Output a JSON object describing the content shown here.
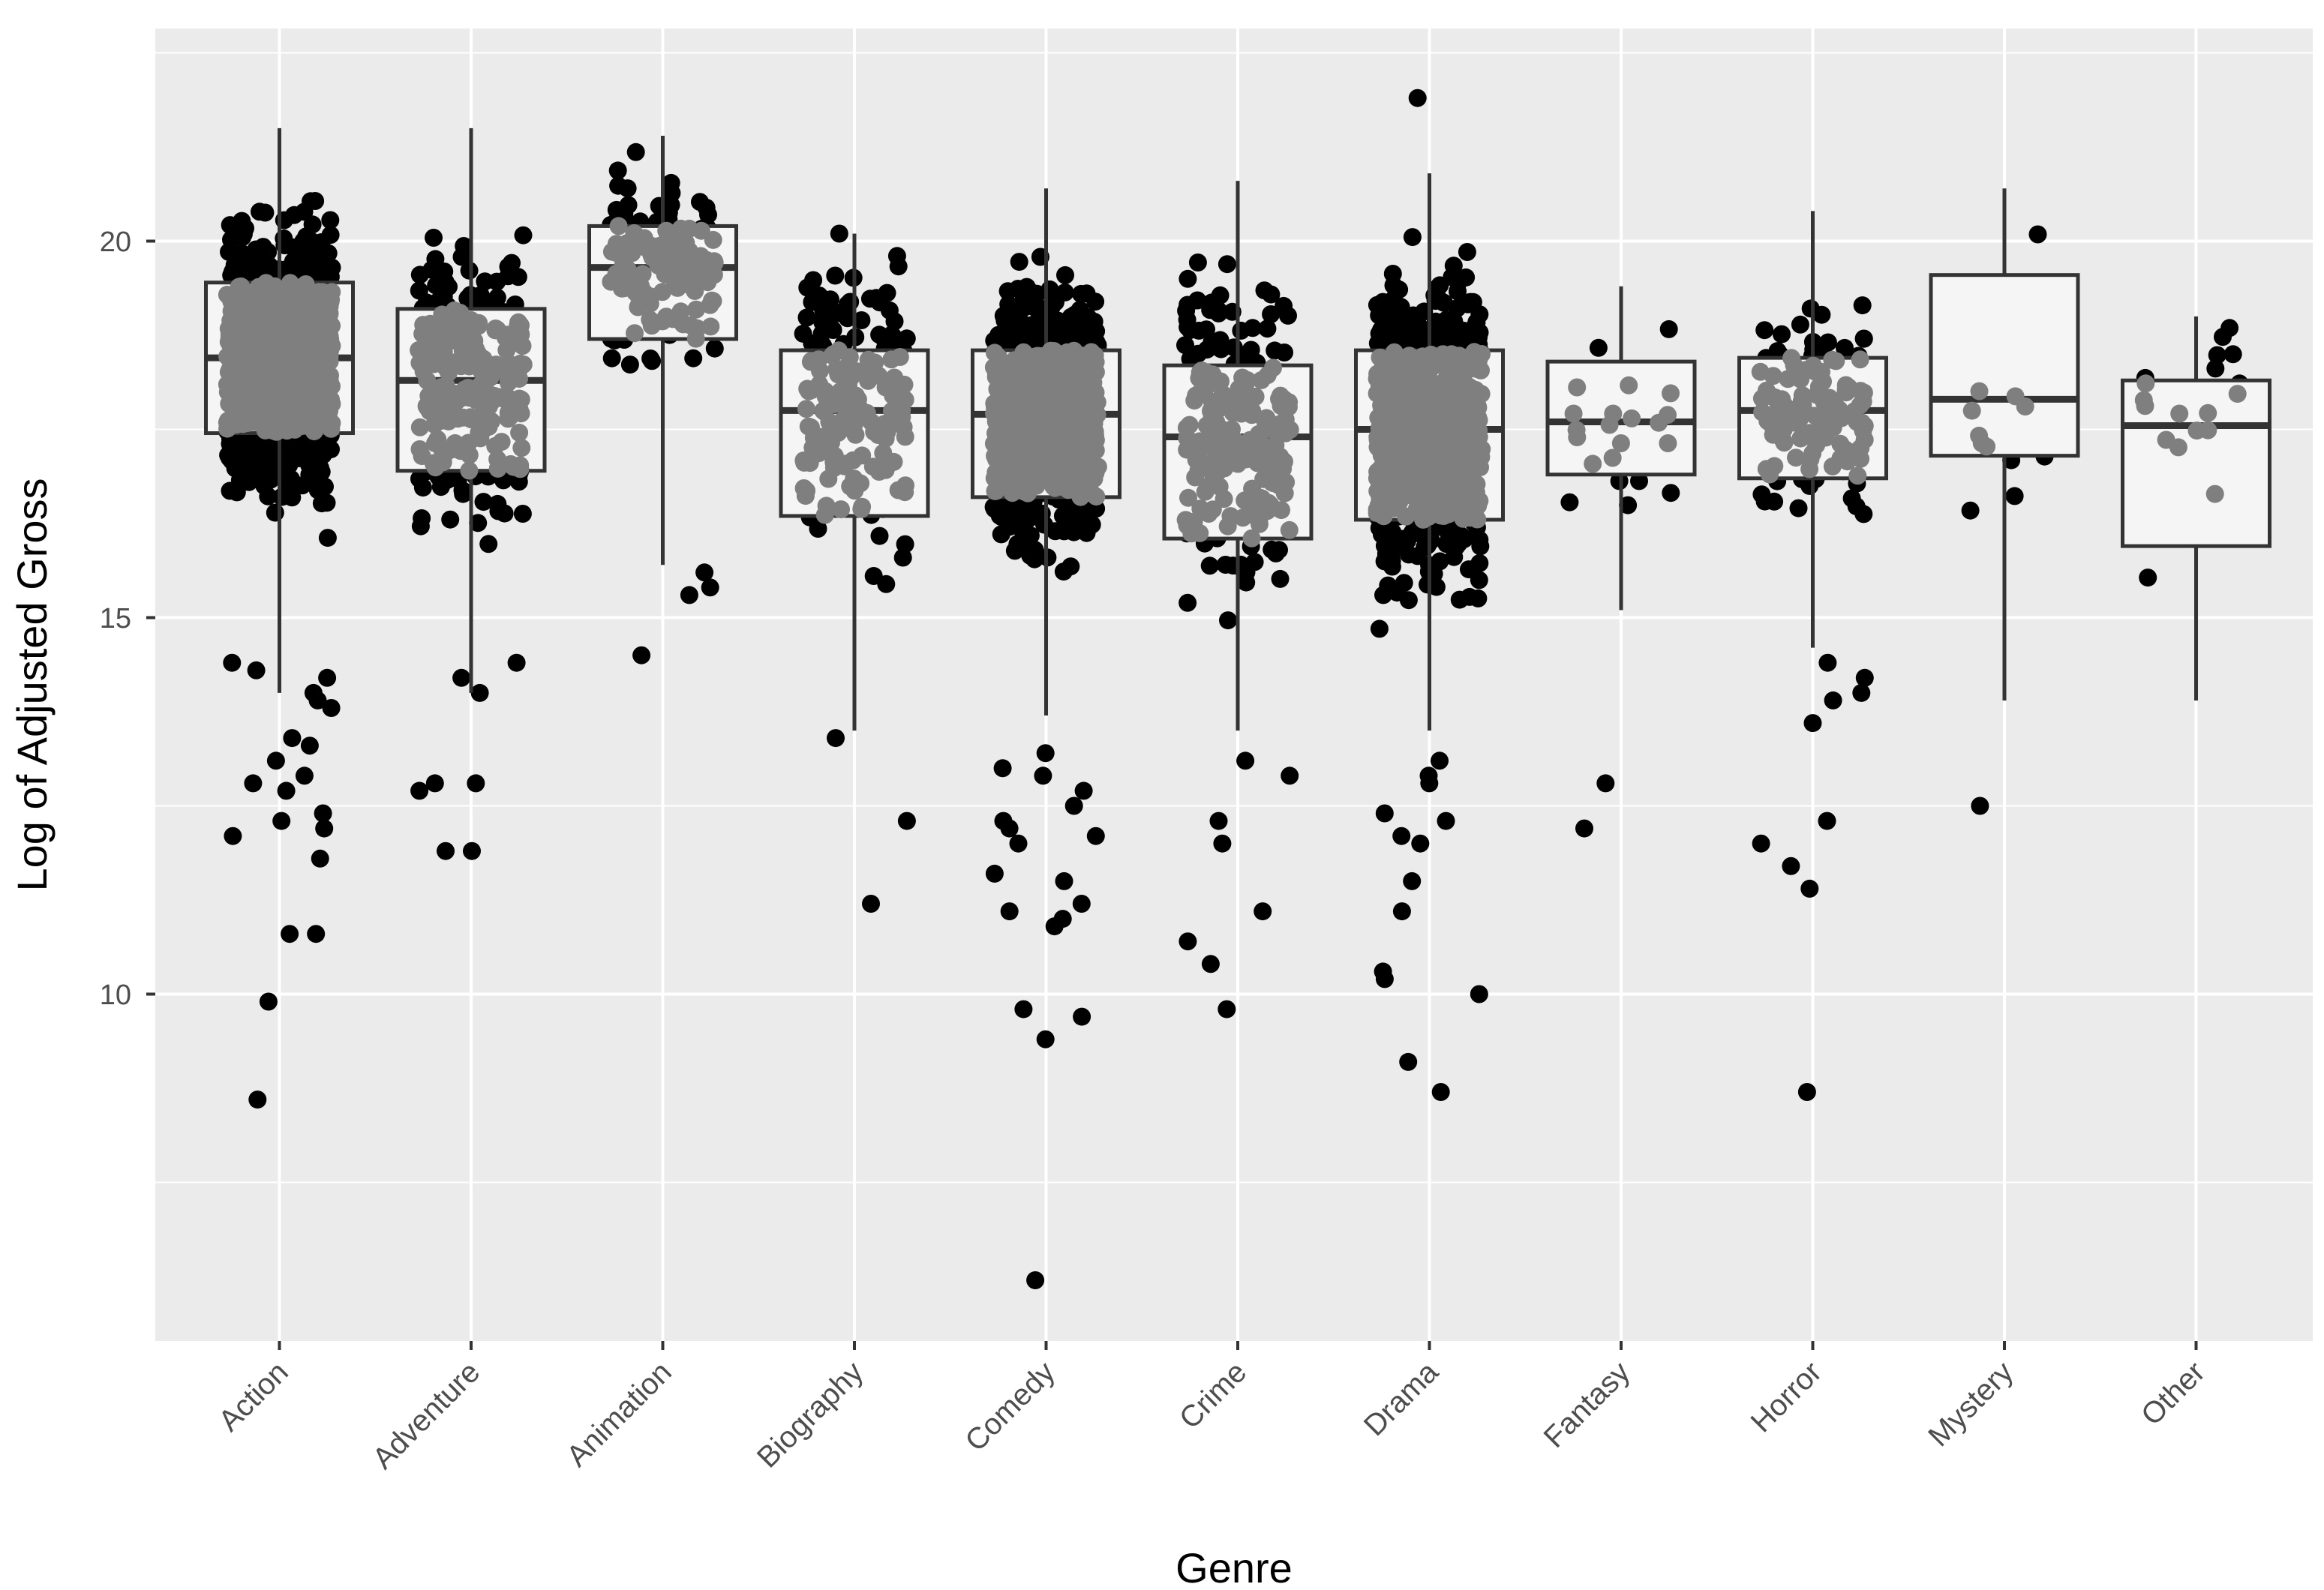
{
  "chart_data": {
    "type": "boxplot-jitter",
    "title": "",
    "xlabel": "Genre",
    "ylabel": "Log of Adjusted Gross",
    "ylim": [
      5.3,
      22.5
    ],
    "yticks": [
      "10",
      "15",
      "20"
    ],
    "grid": true,
    "legend": "none",
    "colors": {
      "panel": "#ebebeb",
      "grid": "#ffffff",
      "point": "#000000",
      "point_overlay": "#7f7f7f",
      "box_fill": "#f5f5f5",
      "box_line": "#333333",
      "tick_text": "#4d4d4d"
    },
    "categories": [
      "Action",
      "Adventure",
      "Animation",
      "Biography",
      "Comedy",
      "Crime",
      "Drama",
      "Fantasy",
      "Horror",
      "Mystery",
      "Other"
    ],
    "series": [
      {
        "name": "Action",
        "n": 1100,
        "box": {
          "lower_whisker": 14.0,
          "q1": 17.45,
          "median": 18.45,
          "q3": 19.45,
          "upper_whisker": 21.5
        },
        "outliers": [
          14.0,
          14.2,
          14.3,
          14.4,
          13.9,
          13.8,
          13.4,
          13.3,
          13.1,
          12.9,
          12.8,
          12.7,
          12.4,
          12.3,
          12.2,
          12.1,
          11.8,
          10.8,
          10.8,
          9.9,
          8.6
        ]
      },
      {
        "name": "Adventure",
        "n": 350,
        "box": {
          "lower_whisker": 14.0,
          "q1": 16.95,
          "median": 18.15,
          "q3": 19.1,
          "upper_whisker": 21.5
        },
        "outliers": [
          14.4,
          14.2,
          14.0,
          12.8,
          12.8,
          12.7,
          11.9,
          11.9
        ]
      },
      {
        "name": "Animation",
        "n": 200,
        "box": {
          "lower_whisker": 15.7,
          "q1": 18.7,
          "median": 19.65,
          "q3": 20.2,
          "upper_whisker": 21.4
        },
        "outliers": [
          15.6,
          15.4,
          15.3,
          14.5
        ]
      },
      {
        "name": "Biography",
        "n": 250,
        "box": {
          "lower_whisker": 13.5,
          "q1": 16.35,
          "median": 17.75,
          "q3": 18.55,
          "upper_whisker": 20.1
        },
        "outliers": [
          13.4,
          12.3,
          11.2
        ]
      },
      {
        "name": "Comedy",
        "n": 1000,
        "box": {
          "lower_whisker": 13.7,
          "q1": 16.6,
          "median": 17.7,
          "q3": 18.55,
          "upper_whisker": 20.7
        },
        "outliers": [
          13.2,
          13.0,
          12.9,
          12.7,
          12.5,
          12.3,
          12.2,
          12.1,
          12.0,
          11.6,
          11.5,
          11.2,
          11.1,
          11.0,
          10.9,
          9.8,
          9.7,
          9.4,
          6.2
        ]
      },
      {
        "name": "Crime",
        "n": 300,
        "box": {
          "lower_whisker": 13.5,
          "q1": 16.05,
          "median": 17.4,
          "q3": 18.35,
          "upper_whisker": 20.8
        },
        "outliers": [
          13.1,
          12.9,
          12.3,
          12.0,
          11.1,
          10.7,
          10.4,
          9.8
        ]
      },
      {
        "name": "Drama",
        "n": 1000,
        "box": {
          "lower_whisker": 13.5,
          "q1": 16.3,
          "median": 17.5,
          "q3": 18.55,
          "upper_whisker": 20.9
        },
        "outliers": [
          13.1,
          12.9,
          12.8,
          12.4,
          12.3,
          12.1,
          12.0,
          11.5,
          11.1,
          10.3,
          10.2,
          10.0,
          9.1,
          8.7,
          21.9
        ]
      },
      {
        "name": "Fantasy",
        "n": 30,
        "box": {
          "lower_whisker": 15.1,
          "q1": 16.9,
          "median": 17.6,
          "q3": 18.4,
          "upper_whisker": 19.4
        },
        "outliers": [
          12.8,
          12.2
        ]
      },
      {
        "name": "Horror",
        "n": 200,
        "box": {
          "lower_whisker": 14.6,
          "q1": 16.85,
          "median": 17.75,
          "q3": 18.45,
          "upper_whisker": 20.4
        },
        "outliers": [
          14.4,
          14.2,
          14.0,
          13.9,
          13.6,
          12.3,
          12.0,
          11.7,
          11.4,
          8.7
        ]
      },
      {
        "name": "Mystery",
        "n": 14,
        "box": {
          "lower_whisker": 13.9,
          "q1": 17.15,
          "median": 17.9,
          "q3": 19.55,
          "upper_whisker": 20.7
        },
        "outliers": [
          12.5
        ]
      },
      {
        "name": "Other",
        "n": 22,
        "box": {
          "lower_whisker": 13.9,
          "q1": 15.95,
          "median": 17.55,
          "q3": 18.15,
          "upper_whisker": 19.0
        },
        "outliers": []
      }
    ]
  }
}
